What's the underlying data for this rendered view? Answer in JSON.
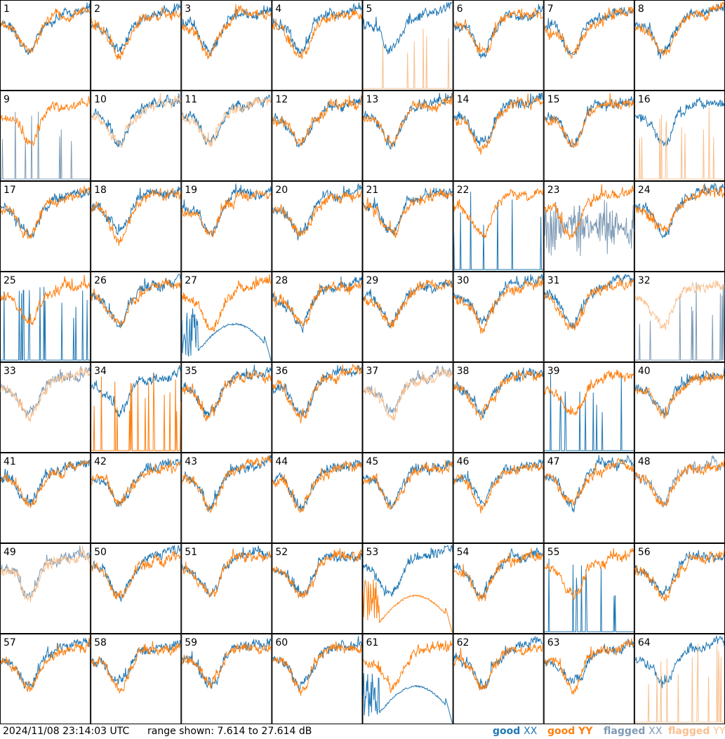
{
  "footer": {
    "timestamp": "2024/11/08 23:14:03 UTC",
    "range_text": "range shown: 7.614 to 27.614 dB",
    "legend": {
      "good_xx": {
        "prefix": "good",
        "pol": "XX"
      },
      "good_yy": {
        "prefix": "good",
        "pol": "YY"
      },
      "flagged_xx": {
        "prefix": "flagged",
        "pol": "XX"
      },
      "flagged_yy": {
        "prefix": "flagged",
        "pol": "YY"
      }
    }
  },
  "colors": {
    "good_xx": "#1f77b4",
    "good_yy": "#ff7f0e",
    "flagged_xx": "#7f9bb5",
    "flagged_yy": "#f9c08e",
    "frame": "#000000"
  },
  "chart_data": {
    "type": "line",
    "ylim": [
      7.614,
      27.614
    ],
    "grid": false,
    "legend_position": "bottom-right",
    "tiles": [
      {
        "id": "1",
        "xx": "good",
        "yy": "good",
        "note": "deep dip"
      },
      {
        "id": "2",
        "xx": "good",
        "yy": "good"
      },
      {
        "id": "3",
        "xx": "good",
        "yy": "good"
      },
      {
        "id": "4",
        "xx": "good",
        "yy": "good"
      },
      {
        "id": "5",
        "xx": "good",
        "yy": "flagged",
        "yy_shape": "spiky"
      },
      {
        "id": "6",
        "xx": "good",
        "yy": "good",
        "note": "offset"
      },
      {
        "id": "7",
        "xx": "good",
        "yy": "good"
      },
      {
        "id": "8",
        "xx": "good",
        "yy": "good"
      },
      {
        "id": "9",
        "xx": "flagged",
        "yy": "good",
        "xx_shape": "spiky"
      },
      {
        "id": "10",
        "xx": "good",
        "yy": "flagged"
      },
      {
        "id": "11",
        "xx": "good",
        "yy": "flagged"
      },
      {
        "id": "12",
        "xx": "good",
        "yy": "good"
      },
      {
        "id": "13",
        "xx": "good",
        "yy": "good"
      },
      {
        "id": "14",
        "xx": "good",
        "yy": "good"
      },
      {
        "id": "15",
        "xx": "good",
        "yy": "good"
      },
      {
        "id": "16",
        "xx": "good",
        "yy": "flagged",
        "yy_shape": "spiky"
      },
      {
        "id": "17",
        "xx": "good",
        "yy": "good"
      },
      {
        "id": "18",
        "xx": "good",
        "yy": "good"
      },
      {
        "id": "19",
        "xx": "good",
        "yy": "good"
      },
      {
        "id": "20",
        "xx": "good",
        "yy": "good"
      },
      {
        "id": "21",
        "xx": "good",
        "yy": "good"
      },
      {
        "id": "22",
        "xx": "good",
        "yy": "good",
        "xx_shape": "spiky"
      },
      {
        "id": "23",
        "xx": "flagged",
        "yy": "good",
        "xx_shape": "noisy"
      },
      {
        "id": "24",
        "xx": "good",
        "yy": "good"
      },
      {
        "id": "25",
        "xx": "good",
        "yy": "good",
        "xx_shape": "spiky"
      },
      {
        "id": "26",
        "xx": "good",
        "yy": "good"
      },
      {
        "id": "27",
        "xx": "good",
        "yy": "good",
        "xx_shape": "broken"
      },
      {
        "id": "28",
        "xx": "good",
        "yy": "good"
      },
      {
        "id": "29",
        "xx": "good",
        "yy": "good"
      },
      {
        "id": "30",
        "xx": "good",
        "yy": "good"
      },
      {
        "id": "31",
        "xx": "good",
        "yy": "good"
      },
      {
        "id": "32",
        "xx": "flagged",
        "yy": "flagged",
        "xx_shape": "spiky"
      },
      {
        "id": "33",
        "xx": "flagged",
        "yy": "flagged"
      },
      {
        "id": "34",
        "xx": "good",
        "yy": "good",
        "yy_shape": "spiky"
      },
      {
        "id": "35",
        "xx": "good",
        "yy": "good"
      },
      {
        "id": "36",
        "xx": "good",
        "yy": "good"
      },
      {
        "id": "37",
        "xx": "flagged",
        "yy": "flagged"
      },
      {
        "id": "38",
        "xx": "good",
        "yy": "good"
      },
      {
        "id": "39",
        "xx": "good",
        "yy": "good",
        "xx_shape": "spiky"
      },
      {
        "id": "40",
        "xx": "good",
        "yy": "good"
      },
      {
        "id": "41",
        "xx": "good",
        "yy": "good"
      },
      {
        "id": "42",
        "xx": "good",
        "yy": "good"
      },
      {
        "id": "43",
        "xx": "good",
        "yy": "good"
      },
      {
        "id": "44",
        "xx": "good",
        "yy": "good"
      },
      {
        "id": "45",
        "xx": "good",
        "yy": "good"
      },
      {
        "id": "46",
        "xx": "good",
        "yy": "good"
      },
      {
        "id": "47",
        "xx": "good",
        "yy": "good"
      },
      {
        "id": "48",
        "xx": "flagged",
        "yy": "good"
      },
      {
        "id": "49",
        "xx": "flagged",
        "yy": "flagged"
      },
      {
        "id": "50",
        "xx": "good",
        "yy": "good"
      },
      {
        "id": "51",
        "xx": "good",
        "yy": "good"
      },
      {
        "id": "52",
        "xx": "good",
        "yy": "good"
      },
      {
        "id": "53",
        "xx": "good",
        "yy": "good",
        "yy_shape": "broken"
      },
      {
        "id": "54",
        "xx": "good",
        "yy": "good"
      },
      {
        "id": "55",
        "xx": "good",
        "yy": "good",
        "xx_shape": "spiky"
      },
      {
        "id": "56",
        "xx": "good",
        "yy": "good"
      },
      {
        "id": "57",
        "xx": "good",
        "yy": "good"
      },
      {
        "id": "58",
        "xx": "good",
        "yy": "good"
      },
      {
        "id": "59",
        "xx": "good",
        "yy": "good"
      },
      {
        "id": "60",
        "xx": "good",
        "yy": "good"
      },
      {
        "id": "61",
        "xx": "good",
        "yy": "good",
        "xx_shape": "broken"
      },
      {
        "id": "62",
        "xx": "good",
        "yy": "good"
      },
      {
        "id": "63",
        "xx": "good",
        "yy": "good"
      },
      {
        "id": "64",
        "xx": "good",
        "yy": "flagged",
        "yy_shape": "spiky"
      }
    ]
  }
}
